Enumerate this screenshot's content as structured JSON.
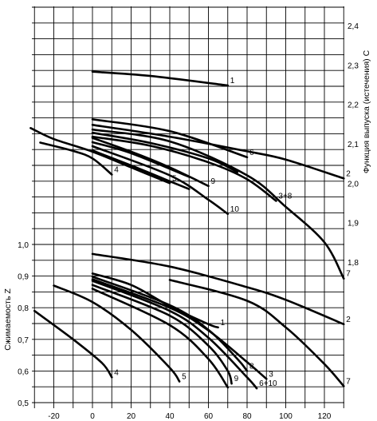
{
  "chart_data": {
    "type": "line",
    "grid": true,
    "xlim": [
      -35,
      132
    ],
    "x_ticks": [
      -20,
      0,
      20,
      40,
      60,
      80,
      100,
      120
    ],
    "x_tick_labels": [
      "-20",
      "0",
      "20",
      "40",
      "60",
      "80",
      "100",
      "120"
    ],
    "left_axis": {
      "label": "Сжимаемость Z",
      "range": [
        0.5,
        1.0
      ],
      "ticks": [
        0.5,
        0.6,
        0.7,
        0.8,
        0.9,
        1.0
      ],
      "tick_labels": [
        "0,5",
        "0,6",
        "0,7",
        "0,8",
        "0,9",
        "1,0"
      ]
    },
    "right_axis": {
      "label": "Функция выпуска (истечения) С",
      "range": [
        1.7,
        2.4
      ],
      "ticks": [
        1.8,
        1.9,
        2.0,
        2.1,
        2.2,
        2.3,
        2.4
      ],
      "tick_labels": [
        "1,8",
        "1,9",
        "2,0",
        "2,1",
        "2,2",
        "2,3",
        "2,4"
      ]
    },
    "series_c": [
      {
        "label": "1",
        "points": [
          [
            0,
            2.283
          ],
          [
            30,
            2.272
          ],
          [
            70,
            2.248
          ]
        ]
      },
      {
        "label": "2",
        "points": [
          [
            0,
            2.148
          ],
          [
            40,
            2.118
          ],
          [
            80,
            2.081
          ],
          [
            100,
            2.06
          ],
          [
            130,
            2.012
          ]
        ]
      },
      {
        "label": "3+8",
        "points": [
          [
            0,
            2.118
          ],
          [
            30,
            2.095
          ],
          [
            60,
            2.053
          ],
          [
            80,
            2.01
          ],
          [
            95,
            1.955
          ]
        ]
      },
      {
        "label": "4",
        "points": [
          [
            -27,
            2.103
          ],
          [
            -10,
            2.082
          ],
          [
            0,
            2.063
          ],
          [
            10,
            2.022
          ]
        ]
      },
      {
        "label": "5",
        "points": [
          [
            -32,
            2.14
          ],
          [
            -20,
            2.112
          ],
          [
            0,
            2.08
          ],
          [
            20,
            2.04
          ],
          [
            40,
            2.0
          ]
        ]
      },
      {
        "label": "6",
        "points": [
          [
            0,
            2.162
          ],
          [
            40,
            2.132
          ],
          [
            80,
            2.066
          ]
        ]
      },
      {
        "label": "7",
        "points": [
          [
            0,
            2.136
          ],
          [
            40,
            2.106
          ],
          [
            80,
            2.02
          ],
          [
            100,
            1.94
          ],
          [
            120,
            1.85
          ],
          [
            130,
            1.758
          ]
        ]
      },
      {
        "label": "9",
        "points": [
          [
            0,
            2.115
          ],
          [
            20,
            2.08
          ],
          [
            40,
            2.04
          ],
          [
            60,
            1.993
          ]
        ]
      },
      {
        "label": "10",
        "points": [
          [
            0,
            2.094
          ],
          [
            40,
            2.02
          ],
          [
            60,
            1.958
          ],
          [
            70,
            1.922
          ]
        ]
      },
      {
        "label": "",
        "points": [
          [
            0,
            2.128
          ],
          [
            30,
            2.102
          ],
          [
            60,
            2.063
          ],
          [
            75,
            2.028
          ]
        ]
      },
      {
        "label": "",
        "points": [
          [
            0,
            2.104
          ],
          [
            20,
            2.076
          ],
          [
            50,
            2.016
          ]
        ]
      },
      {
        "label": "",
        "points": [
          [
            0,
            2.083
          ],
          [
            20,
            2.045
          ],
          [
            40,
            2.005
          ],
          [
            50,
            1.985
          ]
        ]
      }
    ],
    "series_z": [
      {
        "label": "1",
        "points": [
          [
            0,
            0.908
          ],
          [
            20,
            0.872
          ],
          [
            40,
            0.805
          ],
          [
            60,
            0.748
          ],
          [
            65,
            0.738
          ]
        ]
      },
      {
        "label": "2",
        "points": [
          [
            0,
            0.97
          ],
          [
            40,
            0.93
          ],
          [
            80,
            0.865
          ],
          [
            100,
            0.825
          ],
          [
            130,
            0.748
          ]
        ]
      },
      {
        "label": "3",
        "points": [
          [
            0,
            0.89
          ],
          [
            40,
            0.8
          ],
          [
            60,
            0.728
          ],
          [
            80,
            0.628
          ],
          [
            90,
            0.575
          ]
        ]
      },
      {
        "label": "4",
        "points": [
          [
            -30,
            0.79
          ],
          [
            -10,
            0.7
          ],
          [
            5,
            0.625
          ],
          [
            10,
            0.58
          ]
        ]
      },
      {
        "label": "5",
        "points": [
          [
            -20,
            0.87
          ],
          [
            0,
            0.818
          ],
          [
            20,
            0.73
          ],
          [
            40,
            0.61
          ],
          [
            45,
            0.567
          ]
        ]
      },
      {
        "label": "6+10",
        "points": [
          [
            0,
            0.885
          ],
          [
            40,
            0.79
          ],
          [
            60,
            0.705
          ],
          [
            80,
            0.58
          ],
          [
            85,
            0.545
          ]
        ]
      },
      {
        "label": "7",
        "points": [
          [
            40,
            0.888
          ],
          [
            80,
            0.822
          ],
          [
            100,
            0.738
          ],
          [
            120,
            0.622
          ],
          [
            130,
            0.552
          ]
        ]
      },
      {
        "label": "8",
        "points": [
          [
            0,
            0.898
          ],
          [
            40,
            0.808
          ],
          [
            60,
            0.73
          ],
          [
            75,
            0.638
          ],
          [
            80,
            0.6
          ]
        ]
      },
      {
        "label": "9",
        "points": [
          [
            0,
            0.872
          ],
          [
            40,
            0.775
          ],
          [
            60,
            0.68
          ],
          [
            70,
            0.6
          ],
          [
            72,
            0.56
          ]
        ]
      },
      {
        "label": "",
        "points": [
          [
            0,
            0.86
          ],
          [
            40,
            0.745
          ],
          [
            60,
            0.638
          ],
          [
            70,
            0.548
          ]
        ]
      }
    ]
  }
}
